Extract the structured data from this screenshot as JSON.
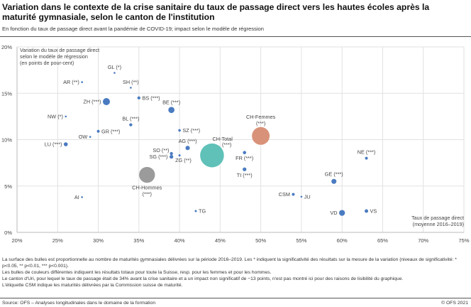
{
  "title": "Variation dans le contexte de la crise sanitaire du taux de passage direct vers les hautes écoles après la maturité gymnasiale, selon le canton de l'institution",
  "subtitle": "En fonction du taux de passage direct avant la pandémie de COVID-19; impact selon le modèle de régression",
  "notes": [
    "La surface des bulles est proportionnelle au nombre de maturités gymnasiales délivrées sur la période 2016–2019. Les * indiquent la significativité des résultats sur la mesure de la variation (niveaux de significativité: * p<0.05, ** p<0.01, *** p<0.001).",
    "Les bulles de couleurs différentes indiquent les résultats totaux pour toute la Suisse, resp. pour les femmes et pour les hommes.",
    "Le canton d'Uri, pour lequel le taux de passage était de 34% avant la crise sanitaire et a un impact non significatif de −13 points, n'est pas montré ici pour des raisons de lisibilité du graphique.",
    "L'étiquette CSM indique les maturités délivrées par la Commission suisse de maturité."
  ],
  "source": "Source: OFS – Analyses longitudinales dans le domaine de la formation",
  "copyright": "© OFS 2021",
  "chart_data": {
    "type": "scatter",
    "xlabel": [
      "Taux de passage direct",
      "(moyenne 2016–2019)"
    ],
    "ylabel": [
      "Variation du taux de passage direct",
      "selon le modèle de régression",
      "(en points de pour-cent)"
    ],
    "xlim": [
      20,
      75
    ],
    "ylim": [
      0,
      20
    ],
    "x_ticks": [
      "20%",
      "25%",
      "30%",
      "35%",
      "40%",
      "45%",
      "50%",
      "55%",
      "60%",
      "65%",
      "70%",
      "75%"
    ],
    "y_ticks": [
      "0%",
      "5%",
      "10%",
      "15%",
      "20%"
    ],
    "grid": true,
    "colors": {
      "canton": "#4a7bc0",
      "total": "#5fc1b8",
      "femmes": "#d9927a",
      "hommes": "#9b9b9b"
    },
    "points": [
      {
        "label": "AR (**)",
        "x": 28,
        "y": 16.2,
        "size": 1,
        "group": "canton"
      },
      {
        "label": "GL (*)",
        "x": 32,
        "y": 17.2,
        "size": 0.6,
        "group": "canton"
      },
      {
        "label": "SH (**)",
        "x": 34,
        "y": 15.6,
        "size": 1,
        "group": "canton"
      },
      {
        "label": "BS (***)",
        "x": 35,
        "y": 14.5,
        "size": 3,
        "group": "canton"
      },
      {
        "label": "ZH (***)",
        "x": 31,
        "y": 14.1,
        "size": 16,
        "group": "canton"
      },
      {
        "label": "BE (***)",
        "x": 39,
        "y": 13.2,
        "size": 12,
        "group": "canton"
      },
      {
        "label": "NW (*)",
        "x": 26,
        "y": 12.5,
        "size": 0.7,
        "group": "canton"
      },
      {
        "label": "BL (***)",
        "x": 34,
        "y": 11.6,
        "size": 3,
        "group": "canton"
      },
      {
        "label": "SZ (***)",
        "x": 40,
        "y": 11.0,
        "size": 2,
        "group": "canton"
      },
      {
        "label": "GR (***)",
        "x": 30,
        "y": 10.9,
        "size": 2.5,
        "group": "canton"
      },
      {
        "label": "OW",
        "x": 29,
        "y": 10.3,
        "size": 0.7,
        "group": "canton"
      },
      {
        "label": "LU (***)",
        "x": 26,
        "y": 9.5,
        "size": 5,
        "group": "canton"
      },
      {
        "label": "AG (***)",
        "x": 41,
        "y": 9.1,
        "size": 6,
        "group": "canton"
      },
      {
        "label": "SO (**)",
        "x": 39,
        "y": 8.5,
        "size": 3,
        "group": "canton"
      },
      {
        "label": "SG (***)",
        "x": 39,
        "y": 8.15,
        "size": 4.5,
        "group": "canton"
      },
      {
        "label": "ZG (**)",
        "x": 40,
        "y": 8.3,
        "size": 1.5,
        "group": "canton"
      },
      {
        "label": "FR (***)",
        "x": 48,
        "y": 8.6,
        "size": 3.5,
        "group": "canton"
      },
      {
        "label": "TI (***)",
        "x": 48,
        "y": 6.8,
        "size": 4.5,
        "group": "canton"
      },
      {
        "label": "TG",
        "x": 42,
        "y": 2.3,
        "size": 1.5,
        "group": "canton"
      },
      {
        "label": "AI",
        "x": 28,
        "y": 3.8,
        "size": 0.5,
        "group": "canton"
      },
      {
        "label": "NE (***)",
        "x": 63,
        "y": 8.0,
        "size": 2.5,
        "group": "canton"
      },
      {
        "label": "GE (***)",
        "x": 59,
        "y": 5.5,
        "size": 8,
        "group": "canton"
      },
      {
        "label": "CSM",
        "x": 54,
        "y": 4.1,
        "size": 2.5,
        "group": "canton"
      },
      {
        "label": "JU",
        "x": 55,
        "y": 3.85,
        "size": 1,
        "group": "canton"
      },
      {
        "label": "VD",
        "x": 60,
        "y": 2.1,
        "size": 11,
        "group": "canton"
      },
      {
        "label": "VS",
        "x": 63,
        "y": 2.3,
        "size": 4,
        "group": "canton"
      },
      {
        "label": "CH-Total (***)",
        "x": 44,
        "y": 8.3,
        "size": 180,
        "group": "total"
      },
      {
        "label": "CH-Femmes (***)",
        "x": 50,
        "y": 10.4,
        "size": 100,
        "group": "femmes"
      },
      {
        "label": "CH-Hommes (***)",
        "x": 36,
        "y": 6.2,
        "size": 80,
        "group": "hommes"
      }
    ]
  }
}
